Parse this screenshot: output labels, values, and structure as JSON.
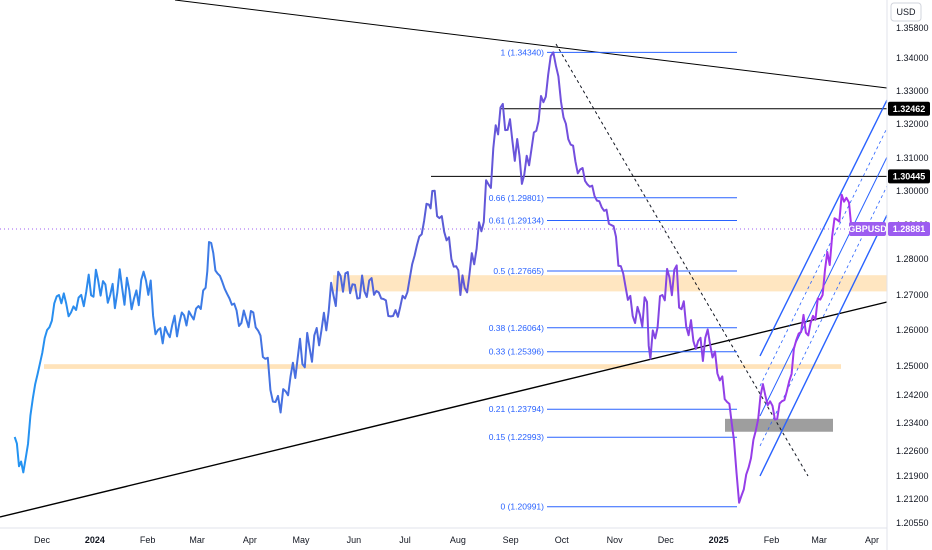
{
  "chart_data": {
    "type": "line",
    "symbol": "GBPUSD",
    "currency": "USD",
    "last_price": "1.28881",
    "colors": {
      "line_start": "#2196f3",
      "line_mid": "#5b5bd6",
      "line_end": "#b030f0",
      "fib": "#2962ff",
      "zone": "#ffe0b2",
      "gray_zone": "#9e9e9e",
      "trendline": "#000000",
      "channel": "#2962ff",
      "tag_dark": "#000000",
      "tag_purple": "#9c5cf0"
    },
    "y_ticks": [
      "1.35800",
      "1.34000",
      "1.33000",
      "1.32000",
      "1.31000",
      "1.30000",
      "1.29000",
      "1.28000",
      "1.27000",
      "1.26000",
      "1.25000",
      "1.24200",
      "1.23400",
      "1.22600",
      "1.21900",
      "1.21200",
      "1.20550"
    ],
    "x_ticks": [
      {
        "label": "Dec",
        "bold": false
      },
      {
        "label": "2024",
        "bold": true
      },
      {
        "label": "Feb",
        "bold": false
      },
      {
        "label": "Mar",
        "bold": false
      },
      {
        "label": "Apr",
        "bold": false
      },
      {
        "label": "May",
        "bold": false
      },
      {
        "label": "Jun",
        "bold": false
      },
      {
        "label": "Jul",
        "bold": false
      },
      {
        "label": "Aug",
        "bold": false
      },
      {
        "label": "Sep",
        "bold": false
      },
      {
        "label": "Oct",
        "bold": false
      },
      {
        "label": "Nov",
        "bold": false
      },
      {
        "label": "Dec",
        "bold": false
      },
      {
        "label": "2025",
        "bold": true
      },
      {
        "label": "Feb",
        "bold": false
      },
      {
        "label": "Mar",
        "bold": false
      },
      {
        "label": "Apr",
        "bold": false
      }
    ],
    "fib_levels": [
      {
        "label": "1 (1.34340)",
        "value": 1.3434
      },
      {
        "label": "0.66 (1.29801)",
        "value": 1.29801
      },
      {
        "label": "0.61 (1.29134)",
        "value": 1.29134
      },
      {
        "label": "0.5 (1.27665)",
        "value": 1.27665
      },
      {
        "label": "0.38 (1.26064)",
        "value": 1.26064
      },
      {
        "label": "0.33 (1.25396)",
        "value": 1.25396
      },
      {
        "label": "0.21 (1.23794)",
        "value": 1.23794
      },
      {
        "label": "0.15 (1.22993)",
        "value": 1.22993
      },
      {
        "label": "0 (1.20991)",
        "value": 1.20991
      }
    ],
    "price_tags": [
      {
        "label": "1.32462",
        "value": 1.32462,
        "style": "dark"
      },
      {
        "label": "1.30445",
        "value": 1.30445,
        "style": "dark"
      },
      {
        "label": "GBPUSD",
        "value": 1.28881,
        "style": "purple"
      },
      {
        "label": "1.28881",
        "value": 1.28881,
        "style": "purple"
      }
    ],
    "series": [
      {
        "name": "GBPUSD",
        "x": [
          "2023-11-15",
          "2023-11-20",
          "2023-11-27",
          "2023-12-04",
          "2023-12-11",
          "2023-12-18",
          "2023-12-27",
          "2024-01-03",
          "2024-01-10",
          "2024-01-17",
          "2024-01-24",
          "2024-01-31",
          "2024-02-07",
          "2024-02-14",
          "2024-02-21",
          "2024-02-28",
          "2024-03-06",
          "2024-03-08",
          "2024-03-13",
          "2024-03-20",
          "2024-03-27",
          "2024-04-03",
          "2024-04-10",
          "2024-04-16",
          "2024-04-22",
          "2024-04-29",
          "2024-05-06",
          "2024-05-13",
          "2024-05-20",
          "2024-05-27",
          "2024-06-03",
          "2024-06-10",
          "2024-06-17",
          "2024-06-24",
          "2024-07-01",
          "2024-07-08",
          "2024-07-15",
          "2024-07-17",
          "2024-07-24",
          "2024-07-31",
          "2024-08-05",
          "2024-08-12",
          "2024-08-19",
          "2024-08-26",
          "2024-09-02",
          "2024-09-09",
          "2024-09-16",
          "2024-09-23",
          "2024-09-26",
          "2024-10-02",
          "2024-10-09",
          "2024-10-16",
          "2024-10-23",
          "2024-10-30",
          "2024-11-06",
          "2024-11-13",
          "2024-11-20",
          "2024-11-22",
          "2024-11-29",
          "2024-12-06",
          "2024-12-13",
          "2024-12-20",
          "2024-12-27",
          "2025-01-06",
          "2025-01-10",
          "2025-01-13",
          "2025-01-20",
          "2025-01-27",
          "2025-02-03",
          "2025-02-10",
          "2025-02-17",
          "2025-02-24",
          "2025-03-03",
          "2025-03-10",
          "2025-03-17",
          "2025-03-20"
        ],
        "values": [
          1.23,
          1.22,
          1.245,
          1.26,
          1.27,
          1.265,
          1.271,
          1.274,
          1.27,
          1.272,
          1.269,
          1.274,
          1.26,
          1.258,
          1.265,
          1.263,
          1.272,
          1.285,
          1.276,
          1.269,
          1.262,
          1.265,
          1.252,
          1.24,
          1.243,
          1.252,
          1.255,
          1.26,
          1.27,
          1.276,
          1.269,
          1.274,
          1.269,
          1.264,
          1.269,
          1.284,
          1.296,
          1.3,
          1.288,
          1.278,
          1.272,
          1.283,
          1.302,
          1.325,
          1.315,
          1.305,
          1.318,
          1.335,
          1.3434,
          1.322,
          1.309,
          1.302,
          1.297,
          1.29,
          1.276,
          1.262,
          1.268,
          1.252,
          1.27,
          1.277,
          1.261,
          1.257,
          1.256,
          1.24,
          1.229,
          1.211,
          1.224,
          1.245,
          1.235,
          1.243,
          1.259,
          1.262,
          1.27,
          1.292,
          1.298,
          1.2888
        ]
      }
    ]
  }
}
